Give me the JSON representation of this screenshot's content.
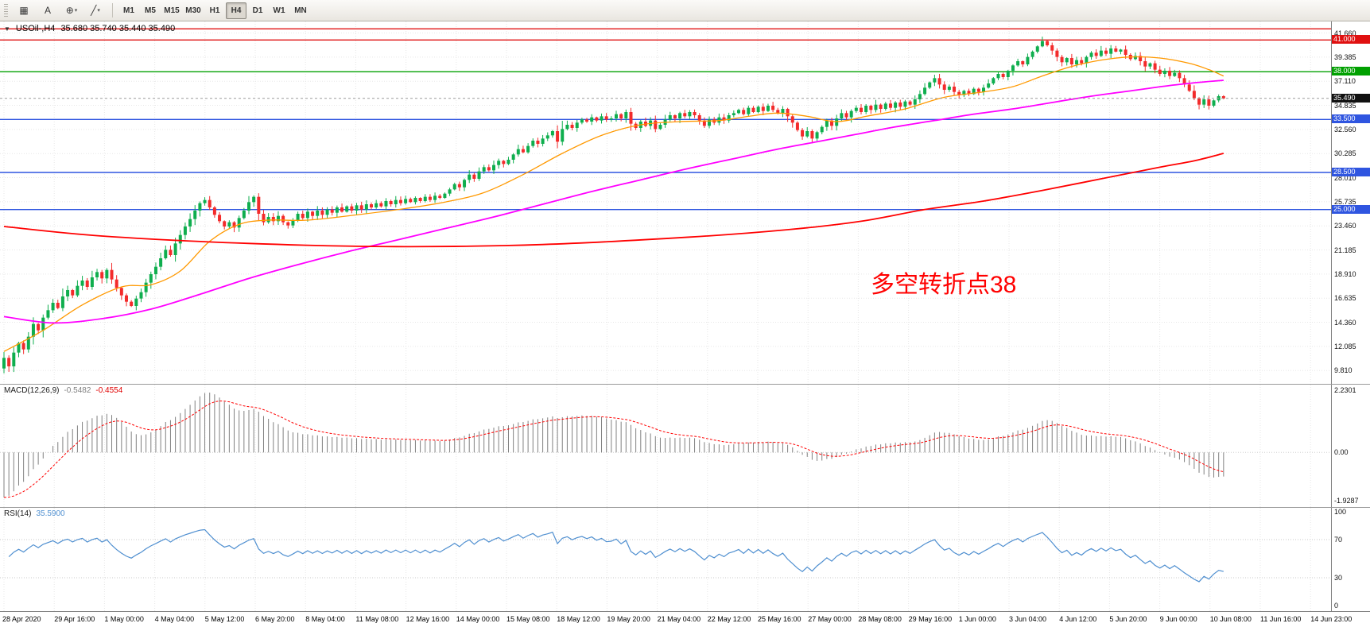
{
  "toolbar": {
    "tool_buttons": [
      {
        "name": "charts-grid",
        "glyph": "▦",
        "caret": false
      },
      {
        "name": "text-label-tool",
        "glyph": "A",
        "caret": false
      },
      {
        "name": "crosshair-tool",
        "glyph": "⊕",
        "caret": true
      },
      {
        "name": "line-studies",
        "glyph": "╱",
        "caret": true
      }
    ],
    "timeframes": [
      {
        "label": "M1",
        "active": false
      },
      {
        "label": "M5",
        "active": false
      },
      {
        "label": "M15",
        "active": false
      },
      {
        "label": "M30",
        "active": false
      },
      {
        "label": "H1",
        "active": false
      },
      {
        "label": "H4",
        "active": true
      },
      {
        "label": "D1",
        "active": false
      },
      {
        "label": "W1",
        "active": false
      },
      {
        "label": "MN",
        "active": false
      }
    ]
  },
  "chart": {
    "title": {
      "collapse_glyph": "▼",
      "symbol": "USOil-,H4",
      "ohlc": "35.680 35.740 35.440 35.490"
    },
    "annotation": {
      "text": "多空转折点38",
      "color": "#ff0000"
    },
    "price_axis_labels": [
      "41.660",
      "39.385",
      "37.110",
      "34.835",
      "32.560",
      "30.285",
      "28.010",
      "25.735",
      "23.460",
      "21.185",
      "18.910",
      "16.635",
      "14.360",
      "12.085",
      "9.810"
    ],
    "hlines": [
      {
        "price": 42.05,
        "color": "#e01010",
        "label": ""
      },
      {
        "price": 41.0,
        "color": "#e01010",
        "label": "41.000"
      },
      {
        "price": 38.0,
        "color": "#00a000",
        "label": "38.000"
      },
      {
        "price": 33.5,
        "color": "#2f55e0",
        "label": "33.500"
      },
      {
        "price": 28.5,
        "color": "#2f55e0",
        "label": "28.500"
      },
      {
        "price": 25.0,
        "color": "#2f55e0",
        "label": "25.000"
      }
    ],
    "current_price": {
      "label": "35.490",
      "value": 35.49
    },
    "colors": {
      "up": "#0fae4e",
      "down": "#f32b2b",
      "ma_fast": "#ff9900",
      "ma_mid": "#ff00ff",
      "ma_slow": "#ff0000",
      "rsi": "#4f8fd0",
      "macd_hist": "#808080",
      "macd_signal": "#ff0000"
    },
    "candles": {
      "first_open": 10.0,
      "closes": [
        11.0,
        10.2,
        11.5,
        12.4,
        11.8,
        13.0,
        14.2,
        13.6,
        14.8,
        15.5,
        16.2,
        15.7,
        16.8,
        17.4,
        16.9,
        17.8,
        18.3,
        17.7,
        18.6,
        19.1,
        18.5,
        19.3,
        18.4,
        17.6,
        16.9,
        16.3,
        15.9,
        16.6,
        17.2,
        18.1,
        18.9,
        19.6,
        20.4,
        21.2,
        20.7,
        21.8,
        22.6,
        23.4,
        24.1,
        24.9,
        25.6,
        25.9,
        25.2,
        24.5,
        23.9,
        23.4,
        23.8,
        23.3,
        24.2,
        24.9,
        25.7,
        26.2,
        24.6,
        23.8,
        24.3,
        23.9,
        24.4,
        23.8,
        23.5,
        24.0,
        24.6,
        24.2,
        24.8,
        24.4,
        24.9,
        24.5,
        25.0,
        24.7,
        25.2,
        24.8,
        25.3,
        24.9,
        25.4,
        25.0,
        25.5,
        25.2,
        25.6,
        25.3,
        25.8,
        25.5,
        25.9,
        25.6,
        26.0,
        25.7,
        26.1,
        25.8,
        26.2,
        25.9,
        26.3,
        26.1,
        26.5,
        26.9,
        27.4,
        27.1,
        27.8,
        28.3,
        27.9,
        28.6,
        29.0,
        28.7,
        29.2,
        29.6,
        29.3,
        29.7,
        30.2,
        30.7,
        30.4,
        31.0,
        31.5,
        31.2,
        31.7,
        32.0,
        32.4,
        31.4,
        32.6,
        33.0,
        32.7,
        33.2,
        33.5,
        33.3,
        33.7,
        33.4,
        33.8,
        33.5,
        33.6,
        34.0,
        33.6,
        34.2,
        33.1,
        32.7,
        33.3,
        32.9,
        33.4,
        32.6,
        33.0,
        33.5,
        33.9,
        33.6,
        34.1,
        33.8,
        34.2,
        33.9,
        33.4,
        32.9,
        33.5,
        33.2,
        33.7,
        33.4,
        33.9,
        34.1,
        34.4,
        34.0,
        34.6,
        34.2,
        34.7,
        34.3,
        34.8,
        34.4,
        34.1,
        34.5,
        33.8,
        33.2,
        32.5,
        31.9,
        32.4,
        31.7,
        32.3,
        32.8,
        33.4,
        32.9,
        33.6,
        34.1,
        33.7,
        34.3,
        34.6,
        34.2,
        34.8,
        34.4,
        34.9,
        34.5,
        35.0,
        34.6,
        35.1,
        34.7,
        35.2,
        34.9,
        35.4,
        35.9,
        36.5,
        37.0,
        37.4,
        36.8,
        36.3,
        36.6,
        36.1,
        35.8,
        36.2,
        35.9,
        36.4,
        36.1,
        36.5,
        36.9,
        37.4,
        37.8,
        37.5,
        38.1,
        38.6,
        39.0,
        38.7,
        39.4,
        39.9,
        40.4,
        40.9,
        40.5,
        40.0,
        39.4,
        38.9,
        39.3,
        38.7,
        39.1,
        38.8,
        39.4,
        39.8,
        39.5,
        40.0,
        39.7,
        40.2,
        39.9,
        40.1,
        39.6,
        39.2,
        39.5,
        39.0,
        38.5,
        38.8,
        38.2,
        37.8,
        38.1,
        37.6,
        37.9,
        37.4,
        36.8,
        36.2,
        35.5,
        34.9,
        35.4,
        34.8,
        35.3,
        35.7,
        35.49
      ]
    },
    "ma_lines": [
      {
        "name": "ma-fast-orange",
        "color_key": "ma_fast",
        "points": [
          [
            0,
            11.6
          ],
          [
            8,
            13.6
          ],
          [
            16,
            16.0
          ],
          [
            24,
            17.7
          ],
          [
            30,
            17.9
          ],
          [
            36,
            19.2
          ],
          [
            42,
            22.0
          ],
          [
            48,
            23.6
          ],
          [
            54,
            24.0
          ],
          [
            62,
            24.0
          ],
          [
            72,
            24.5
          ],
          [
            82,
            25.1
          ],
          [
            90,
            25.7
          ],
          [
            98,
            26.6
          ],
          [
            106,
            28.3
          ],
          [
            114,
            30.3
          ],
          [
            122,
            32.0
          ],
          [
            130,
            33.0
          ],
          [
            138,
            33.3
          ],
          [
            146,
            33.4
          ],
          [
            152,
            33.8
          ],
          [
            158,
            34.1
          ],
          [
            164,
            33.8
          ],
          [
            170,
            33.3
          ],
          [
            176,
            33.8
          ],
          [
            184,
            34.5
          ],
          [
            192,
            35.6
          ],
          [
            200,
            36.1
          ],
          [
            206,
            36.6
          ],
          [
            212,
            37.6
          ],
          [
            218,
            38.5
          ],
          [
            224,
            39.1
          ],
          [
            230,
            39.4
          ],
          [
            236,
            39.3
          ],
          [
            242,
            38.8
          ],
          [
            246,
            38.2
          ],
          [
            249,
            37.6
          ]
        ]
      },
      {
        "name": "ma-mid-magenta",
        "color_key": "ma_mid",
        "points": [
          [
            0,
            14.9
          ],
          [
            10,
            14.3
          ],
          [
            20,
            14.7
          ],
          [
            30,
            15.6
          ],
          [
            40,
            17.0
          ],
          [
            50,
            18.5
          ],
          [
            60,
            19.8
          ],
          [
            70,
            21.0
          ],
          [
            80,
            22.1
          ],
          [
            90,
            23.2
          ],
          [
            100,
            24.3
          ],
          [
            110,
            25.5
          ],
          [
            120,
            26.7
          ],
          [
            130,
            27.8
          ],
          [
            140,
            28.9
          ],
          [
            150,
            29.9
          ],
          [
            158,
            30.7
          ],
          [
            166,
            31.4
          ],
          [
            174,
            32.1
          ],
          [
            182,
            32.8
          ],
          [
            190,
            33.4
          ],
          [
            198,
            34.0
          ],
          [
            206,
            34.5
          ],
          [
            214,
            35.1
          ],
          [
            222,
            35.7
          ],
          [
            230,
            36.2
          ],
          [
            238,
            36.7
          ],
          [
            244,
            37.0
          ],
          [
            249,
            37.2
          ]
        ]
      },
      {
        "name": "ma-slow-red",
        "color_key": "ma_slow",
        "points": [
          [
            0,
            23.4
          ],
          [
            20,
            22.5
          ],
          [
            50,
            21.8
          ],
          [
            80,
            21.5
          ],
          [
            110,
            21.7
          ],
          [
            140,
            22.4
          ],
          [
            160,
            23.1
          ],
          [
            175,
            23.9
          ],
          [
            188,
            25.0
          ],
          [
            200,
            25.8
          ],
          [
            212,
            26.8
          ],
          [
            224,
            27.9
          ],
          [
            236,
            29.0
          ],
          [
            243,
            29.6
          ],
          [
            249,
            30.3
          ]
        ]
      }
    ]
  },
  "macd": {
    "name": "MACD(12,26,9)",
    "value_main": "-0.5482",
    "value_signal": "-0.4554",
    "axis_top": "2.2301",
    "axis_zero": "0.00",
    "axis_bottom": "-1.9287",
    "fast": 12,
    "slow": 26,
    "signal": 9
  },
  "rsi": {
    "name": "RSI(14)",
    "value": "35.5900",
    "period": 14,
    "levels": [
      70,
      30
    ],
    "axis": {
      "top": "100",
      "upper": "70",
      "lower": "30",
      "bottom": "0"
    }
  },
  "time_axis": {
    "labels": [
      "28 Apr 2020",
      "29 Apr 16:00",
      "1 May 00:00",
      "4 May 04:00",
      "5 May 12:00",
      "6 May 20:00",
      "8 May 04:00",
      "11 May 08:00",
      "12 May 16:00",
      "14 May 00:00",
      "15 May 08:00",
      "18 May 12:00",
      "19 May 20:00",
      "21 May 04:00",
      "22 May 12:00",
      "25 May 16:00",
      "27 May 00:00",
      "28 May 08:00",
      "29 May 16:00",
      "1 Jun 00:00",
      "3 Jun 04:00",
      "4 Jun 12:00",
      "5 Jun 20:00",
      "9 Jun 00:00",
      "10 Jun 08:00",
      "11 Jun 16:00",
      "14 Jun 23:00"
    ]
  }
}
